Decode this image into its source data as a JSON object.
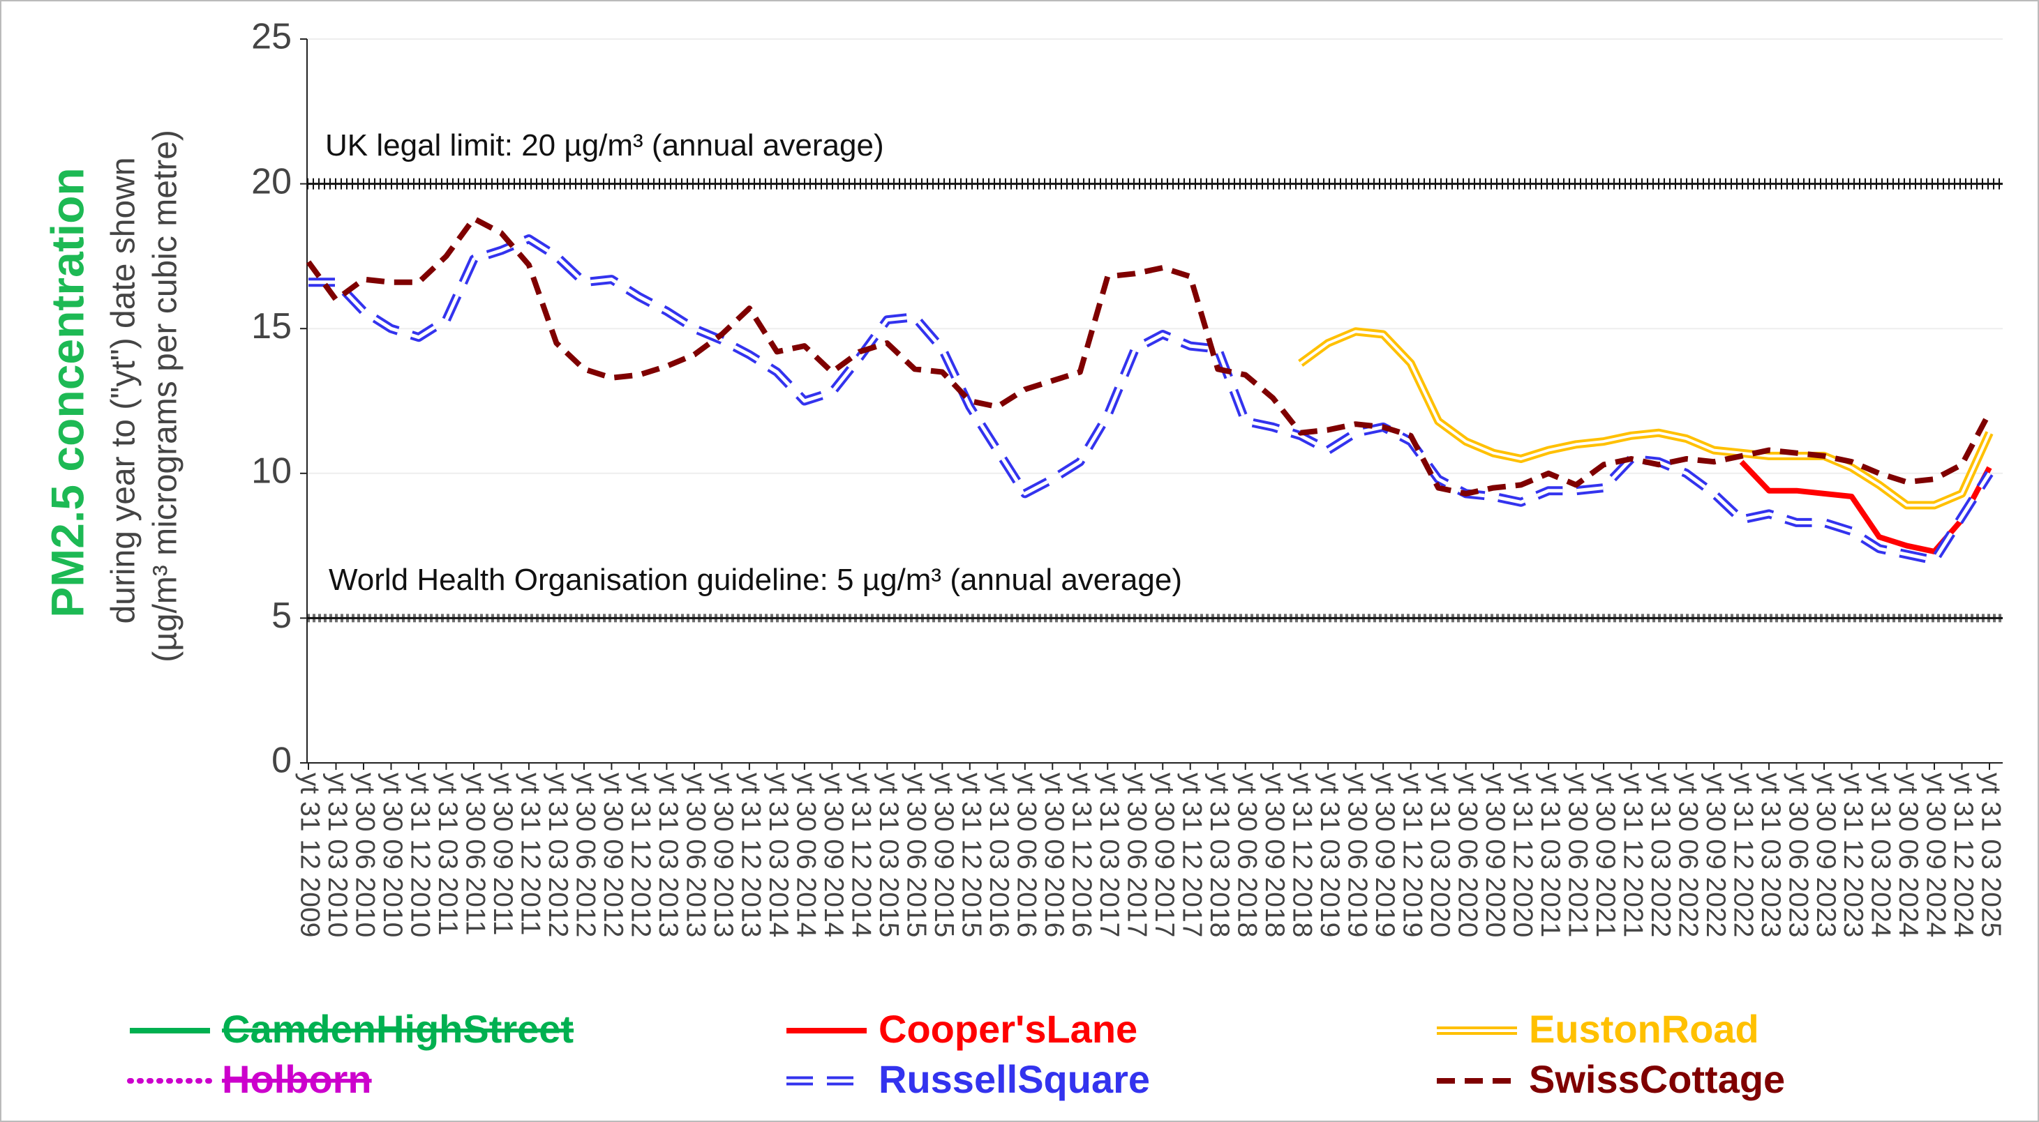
{
  "chart_data": {
    "type": "line",
    "y_label": "PM2.5 concentration",
    "y_sublabel": [
      "during year to (\"yt\") date shown",
      "(µg/m³ micrograms per cubic metre)"
    ],
    "ylim": [
      0,
      25
    ],
    "yticks": [
      0,
      5,
      10,
      15,
      20,
      25
    ],
    "grid": true,
    "reference_lines": [
      {
        "value": 20,
        "label": "UK legal limit: 20 µg/m³ (annual average)"
      },
      {
        "value": 5,
        "label": "World Health Organisation guideline: 5 µg/m³ (annual average)"
      }
    ],
    "categories": [
      "yt 31 12 2009",
      "yt 31 03 2010",
      "yt 30 06 2010",
      "yt 30 09 2010",
      "yt 31 12 2010",
      "yt 31 03 2011",
      "yt 30 06 2011",
      "yt 30 09 2011",
      "yt 31 12 2011",
      "yt 31 03 2012",
      "yt 30 06 2012",
      "yt 30 09 2012",
      "yt 31 12 2012",
      "yt 31 03 2013",
      "yt 30 06 2013",
      "yt 30 09 2013",
      "yt 31 12 2013",
      "yt 31 03 2014",
      "yt 30 06 2014",
      "yt 30 09 2014",
      "yt 31 12 2014",
      "yt 31 03 2015",
      "yt 30 06 2015",
      "yt 30 09 2015",
      "yt 31 12 2015",
      "yt 31 03 2016",
      "yt 30 06 2016",
      "yt 30 09 2016",
      "yt 31 12 2016",
      "yt 31 03 2017",
      "yt 30 06 2017",
      "yt 30 09 2017",
      "yt 31 12 2017",
      "yt 31 03 2018",
      "yt 30 06 2018",
      "yt 30 09 2018",
      "yt 31 12 2018",
      "yt 31 03 2019",
      "yt 30 06 2019",
      "yt 30 09 2019",
      "yt 31 12 2019",
      "yt 31 03 2020",
      "yt 30 06 2020",
      "yt 30 09 2020",
      "yt 31 12 2020",
      "yt 31 03 2021",
      "yt 30 06 2021",
      "yt 30 09 2021",
      "yt 31 12 2021",
      "yt 31 03 2022",
      "yt 30 06 2022",
      "yt 30 09 2022",
      "yt 31 12 2022",
      "yt 31 03 2023",
      "yt 30 06 2023",
      "yt 30 09 2023",
      "yt 31 12 2023",
      "yt 31 03 2024",
      "yt 30 06 2024",
      "yt 30 09 2024",
      "yt 31 12 2024",
      "yt 31 03 2025"
    ],
    "series": [
      {
        "name": "CamdenHighStreet",
        "color": "#00b050",
        "style": "solid",
        "strikethrough": true,
        "values": [
          null,
          null,
          null,
          null,
          null,
          null,
          null,
          null,
          null,
          null,
          null,
          null,
          null,
          null,
          null,
          null,
          null,
          null,
          null,
          null,
          null,
          null,
          null,
          null,
          null,
          null,
          null,
          null,
          null,
          null,
          null,
          null,
          null,
          null,
          null,
          null,
          null,
          null,
          null,
          null,
          null,
          null,
          null,
          null,
          null,
          null,
          null,
          null,
          null,
          null,
          null,
          null,
          null,
          null,
          null,
          null,
          null,
          null,
          null,
          null,
          null,
          null
        ]
      },
      {
        "name": "Cooper'sLane",
        "color": "#ff0000",
        "style": "solid",
        "strikethrough": false,
        "values": [
          null,
          null,
          null,
          null,
          null,
          null,
          null,
          null,
          null,
          null,
          null,
          null,
          null,
          null,
          null,
          null,
          null,
          null,
          null,
          null,
          null,
          null,
          null,
          null,
          null,
          null,
          null,
          null,
          null,
          null,
          null,
          null,
          null,
          null,
          null,
          null,
          null,
          null,
          null,
          null,
          null,
          null,
          null,
          null,
          null,
          null,
          null,
          null,
          null,
          null,
          null,
          null,
          10.4,
          9.4,
          9.4,
          9.3,
          9.2,
          7.8,
          7.5,
          7.3,
          8.4,
          10.2
        ]
      },
      {
        "name": "EustonRoad",
        "color": "#ffc000",
        "style": "double",
        "strikethrough": false,
        "values": [
          null,
          null,
          null,
          null,
          null,
          null,
          null,
          null,
          null,
          null,
          null,
          null,
          null,
          null,
          null,
          null,
          null,
          null,
          null,
          null,
          null,
          null,
          null,
          null,
          null,
          null,
          null,
          null,
          null,
          null,
          null,
          null,
          null,
          null,
          null,
          null,
          13.8,
          14.5,
          14.9,
          14.8,
          13.8,
          11.8,
          11.1,
          10.7,
          10.5,
          10.8,
          11.0,
          11.1,
          11.3,
          11.4,
          11.2,
          10.8,
          10.7,
          10.6,
          10.6,
          10.6,
          10.2,
          9.6,
          8.9,
          8.9,
          9.3,
          11.4
        ]
      },
      {
        "name": "Holborn",
        "color": "#cc00cc",
        "style": "dotted",
        "strikethrough": true,
        "values": [
          null,
          null,
          null,
          null,
          null,
          null,
          null,
          null,
          null,
          null,
          null,
          null,
          null,
          null,
          null,
          null,
          null,
          null,
          null,
          null,
          null,
          null,
          null,
          null,
          null,
          null,
          null,
          null,
          null,
          null,
          null,
          null,
          null,
          null,
          null,
          null,
          null,
          null,
          null,
          null,
          null,
          null,
          null,
          null,
          null,
          null,
          null,
          null,
          null,
          null,
          null,
          null,
          null,
          null,
          null,
          null,
          null,
          null,
          null,
          null,
          null,
          null
        ]
      },
      {
        "name": "RussellSquare",
        "color": "#3333ee",
        "style": "dashed-outline",
        "strikethrough": false,
        "values": [
          16.6,
          16.6,
          15.6,
          15.0,
          14.7,
          15.3,
          17.4,
          17.7,
          18.1,
          17.5,
          16.6,
          16.7,
          16.1,
          15.6,
          15.0,
          14.6,
          14.1,
          13.5,
          12.5,
          12.8,
          14.0,
          15.3,
          15.4,
          14.3,
          12.3,
          10.8,
          9.3,
          9.8,
          10.4,
          12.0,
          14.3,
          14.8,
          14.4,
          14.3,
          11.8,
          11.6,
          11.3,
          10.8,
          11.4,
          11.6,
          11.1,
          9.8,
          9.3,
          9.2,
          9.0,
          9.4,
          9.4,
          9.5,
          10.5,
          10.4,
          10.0,
          9.3,
          8.4,
          8.6,
          8.3,
          8.3,
          8.0,
          7.4,
          7.2,
          7.0,
          8.5,
          10.0
        ]
      },
      {
        "name": "SwissCottage",
        "color": "#7f0000",
        "style": "dashed",
        "strikethrough": false,
        "values": [
          17.3,
          16.0,
          16.7,
          16.6,
          16.6,
          17.5,
          18.8,
          18.3,
          17.2,
          14.5,
          13.6,
          13.3,
          13.4,
          13.7,
          14.1,
          14.8,
          15.7,
          14.2,
          14.4,
          13.5,
          14.2,
          14.5,
          13.6,
          13.5,
          12.5,
          12.3,
          12.9,
          13.2,
          13.5,
          16.8,
          16.9,
          17.1,
          16.8,
          13.6,
          13.4,
          12.6,
          11.4,
          11.5,
          11.7,
          11.6,
          11.3,
          9.5,
          9.3,
          9.5,
          9.6,
          10.0,
          9.6,
          10.3,
          10.5,
          10.3,
          10.5,
          10.4,
          10.6,
          10.8,
          10.7,
          10.6,
          10.4,
          10.0,
          9.7,
          9.8,
          10.3,
          12.1
        ]
      }
    ]
  }
}
